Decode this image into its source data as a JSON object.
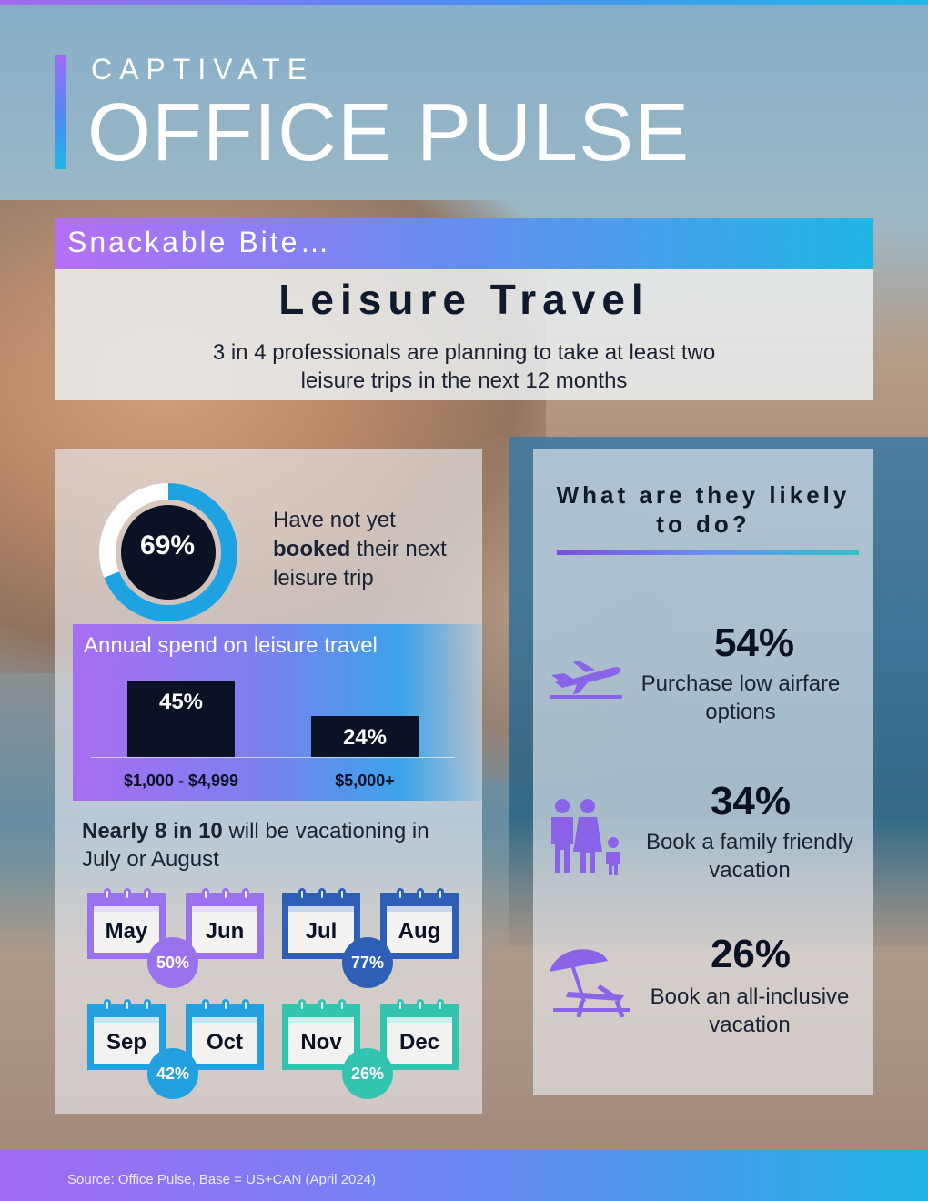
{
  "brand": {
    "small": "CAPTIVATE",
    "big": "OFFICE PULSE"
  },
  "header": {
    "kicker": "Snackable Bite…",
    "title": "Leisure Travel",
    "lead": "3 in 4 professionals are planning to take at least two leisure trips in the next 12 months"
  },
  "booked": {
    "pct_label": "69%",
    "pct_value": 69,
    "text_before": "Have not yet",
    "text_bold": "booked",
    "text_after": "their next leisure trip"
  },
  "chart_data": {
    "type": "bar",
    "title": "Annual spend on leisure travel",
    "categories": [
      "$1,000 - $4,999",
      "$5,000+"
    ],
    "values": [
      45,
      24
    ],
    "labels": [
      "45%",
      "24%"
    ]
  },
  "vacation": {
    "bold": "Nearly 8 in 10",
    "rest": "will be vacationing in July or August",
    "groups": [
      {
        "months": [
          "May",
          "Jun"
        ],
        "pct": "50%",
        "color": "#9a72ee"
      },
      {
        "months": [
          "Jul",
          "Aug"
        ],
        "pct": "77%",
        "color": "#2d5fb7"
      },
      {
        "months": [
          "Sep",
          "Oct"
        ],
        "pct": "42%",
        "color": "#23a0e0"
      },
      {
        "months": [
          "Nov",
          "Dec"
        ],
        "pct": "26%",
        "color": "#33c4b0"
      }
    ]
  },
  "right": {
    "title": "What are they likely to do?",
    "stats": [
      {
        "pct": "54%",
        "text": "Purchase low airfare options",
        "icon": "airplane-icon"
      },
      {
        "pct": "34%",
        "text": "Book a family friendly vacation",
        "icon": "family-icon"
      },
      {
        "pct": "26%",
        "text": "Book an all-inclusive vacation",
        "icon": "beach-chair-icon"
      }
    ]
  },
  "footer": {
    "source": "Source: Office Pulse, Base = US+CAN (April 2024)"
  }
}
